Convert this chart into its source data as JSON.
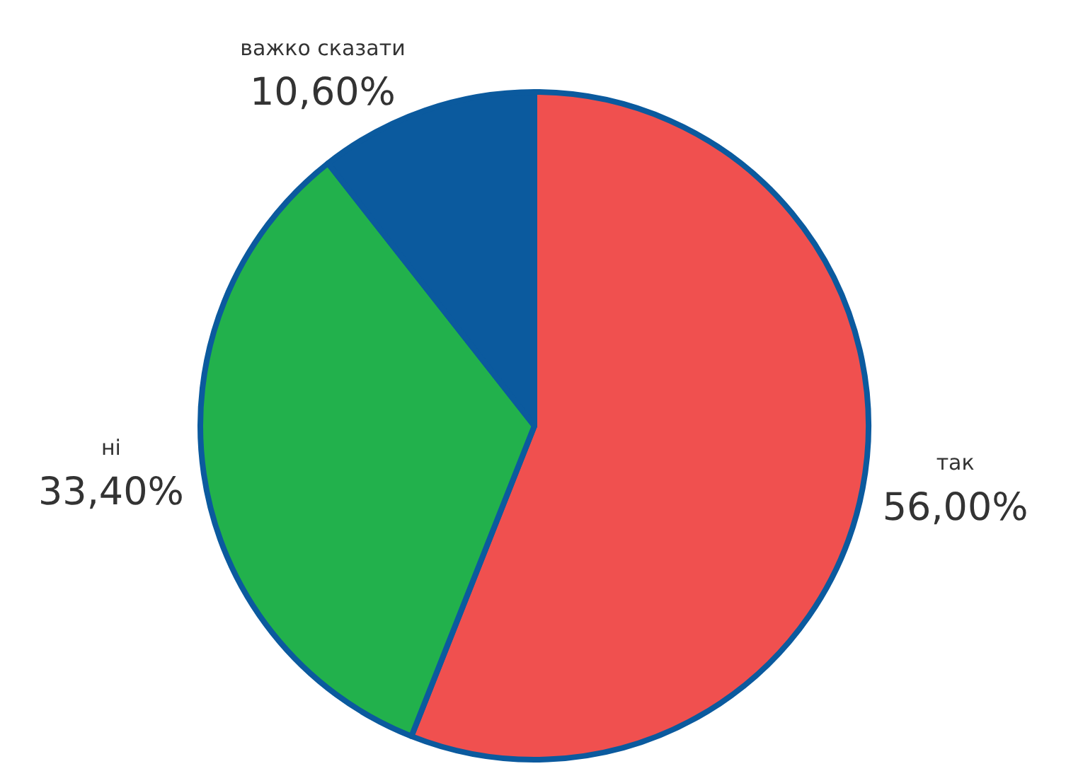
{
  "chart_data": {
    "type": "pie",
    "categories": [
      "так",
      "ні",
      "важко сказати"
    ],
    "values": [
      56,
      33.4,
      10.6
    ],
    "value_labels": [
      "56,00%",
      "33,40%",
      "10,60%"
    ],
    "colors": [
      "#f0504f",
      "#22b14c",
      "#0b5a9e"
    ],
    "legend": false
  }
}
